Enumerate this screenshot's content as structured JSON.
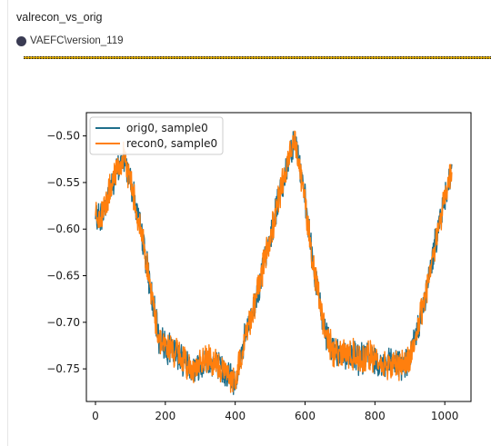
{
  "panel": {
    "title": "valrecon_vs_orig",
    "run_label": "VAEFC\\version_119",
    "run_color": "#3a3b53"
  },
  "chart_data": {
    "type": "line",
    "title": "",
    "xlabel": "",
    "ylabel": "",
    "xlim": [
      -26,
      1075
    ],
    "ylim": [
      -0.785,
      -0.475
    ],
    "x_ticks": [
      0,
      200,
      400,
      600,
      800,
      1000
    ],
    "x_tick_labels": [
      "0",
      "200",
      "400",
      "600",
      "800",
      "1000"
    ],
    "y_ticks": [
      -0.5,
      -0.55,
      -0.6,
      -0.65,
      -0.7,
      -0.75
    ],
    "y_tick_labels": [
      "−0.50",
      "−0.55",
      "−0.60",
      "−0.65",
      "−0.70",
      "−0.75"
    ],
    "grid": false,
    "legend_position": "top-left",
    "series": [
      {
        "name": "orig0, sample0",
        "color": "#1f6f8b",
        "x": [
          0,
          20,
          40,
          60,
          80,
          100,
          120,
          140,
          160,
          180,
          200,
          220,
          240,
          260,
          280,
          300,
          320,
          340,
          360,
          380,
          400,
          420,
          440,
          460,
          480,
          500,
          520,
          540,
          560,
          570,
          580,
          600,
          620,
          640,
          660,
          680,
          700,
          720,
          740,
          760,
          780,
          800,
          820,
          840,
          860,
          880,
          900,
          920,
          940,
          960,
          980,
          1000,
          1020
        ],
        "values": [
          -0.59,
          -0.585,
          -0.56,
          -0.54,
          -0.525,
          -0.545,
          -0.585,
          -0.62,
          -0.67,
          -0.715,
          -0.725,
          -0.73,
          -0.735,
          -0.745,
          -0.75,
          -0.745,
          -0.74,
          -0.745,
          -0.75,
          -0.755,
          -0.765,
          -0.73,
          -0.7,
          -0.675,
          -0.64,
          -0.61,
          -0.575,
          -0.545,
          -0.515,
          -0.5,
          -0.52,
          -0.57,
          -0.63,
          -0.675,
          -0.715,
          -0.73,
          -0.73,
          -0.735,
          -0.735,
          -0.74,
          -0.735,
          -0.74,
          -0.745,
          -0.745,
          -0.745,
          -0.745,
          -0.74,
          -0.71,
          -0.68,
          -0.64,
          -0.6,
          -0.565,
          -0.535
        ]
      },
      {
        "name": "recon0, sample0",
        "color": "#ff7f0e",
        "x": [
          0,
          20,
          40,
          60,
          80,
          100,
          120,
          140,
          160,
          180,
          200,
          220,
          240,
          260,
          280,
          300,
          320,
          340,
          360,
          380,
          400,
          420,
          440,
          460,
          480,
          500,
          520,
          540,
          560,
          570,
          580,
          600,
          620,
          640,
          660,
          680,
          700,
          720,
          740,
          760,
          780,
          800,
          820,
          840,
          860,
          880,
          900,
          920,
          940,
          960,
          980,
          1000,
          1020
        ],
        "values": [
          -0.59,
          -0.585,
          -0.56,
          -0.54,
          -0.525,
          -0.545,
          -0.585,
          -0.62,
          -0.67,
          -0.715,
          -0.725,
          -0.73,
          -0.735,
          -0.745,
          -0.75,
          -0.745,
          -0.74,
          -0.745,
          -0.75,
          -0.755,
          -0.765,
          -0.73,
          -0.7,
          -0.675,
          -0.64,
          -0.61,
          -0.575,
          -0.545,
          -0.515,
          -0.5,
          -0.52,
          -0.57,
          -0.63,
          -0.675,
          -0.715,
          -0.73,
          -0.73,
          -0.735,
          -0.735,
          -0.74,
          -0.735,
          -0.74,
          -0.745,
          -0.745,
          -0.745,
          -0.745,
          -0.74,
          -0.71,
          -0.68,
          -0.64,
          -0.6,
          -0.565,
          -0.535
        ]
      }
    ]
  }
}
